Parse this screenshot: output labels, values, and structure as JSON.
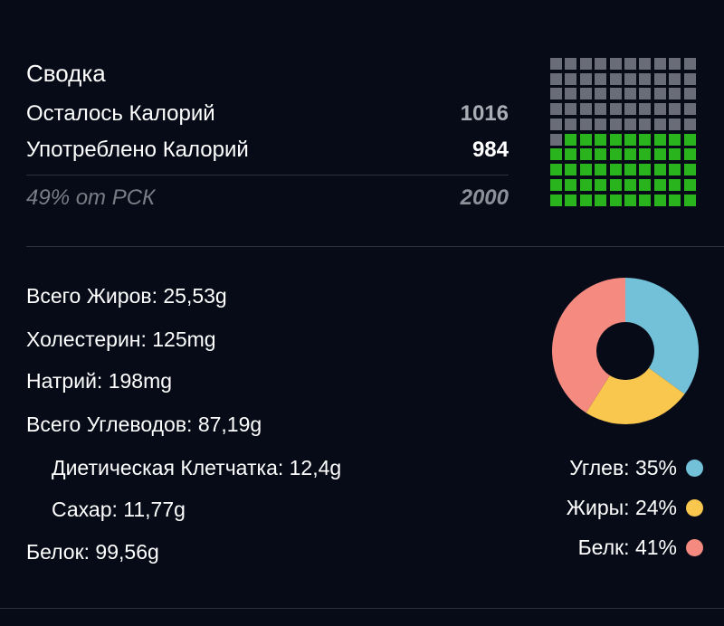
{
  "summary": {
    "title": "Сводка",
    "remaining_label": "Осталось Калорий",
    "remaining_value": "1016",
    "consumed_label": "Употреблено Калорий",
    "consumed_value": "984",
    "rsk_label": "49% от РСК",
    "rsk_value": "2000"
  },
  "waffle": {
    "total_cells": 100,
    "filled_cells": 49,
    "filled_color": "#29b31d",
    "empty_color": "#6a6d77"
  },
  "nutrients": [
    {
      "text": "Всего Жиров: 25,53g",
      "indent": false
    },
    {
      "text": "Холестерин: 125mg",
      "indent": false
    },
    {
      "text": "Натрий: 198mg",
      "indent": false
    },
    {
      "text": "Всего Углеводов: 87,19g",
      "indent": false
    },
    {
      "text": "Диетическая Клетчатка: 12,4g",
      "indent": true
    },
    {
      "text": "Сахар: 11,77g",
      "indent": true
    },
    {
      "text": "Белок: 99,56g",
      "indent": false
    }
  ],
  "chart_data": {
    "type": "pie",
    "donut": true,
    "title": "",
    "slices": [
      {
        "label": "Углев: 35%",
        "value": 35,
        "color": "#73c1d9"
      },
      {
        "label": "Жиры: 24%",
        "value": 24,
        "color": "#f9c64e"
      },
      {
        "label": "Белк: 41%",
        "value": 41,
        "color": "#f48a80"
      }
    ]
  }
}
